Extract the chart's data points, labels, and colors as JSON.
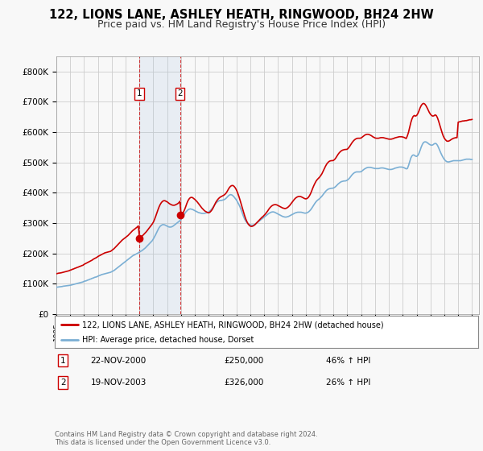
{
  "title": "122, LIONS LANE, ASHLEY HEATH, RINGWOOD, BH24 2HW",
  "subtitle": "Price paid vs. HM Land Registry's House Price Index (HPI)",
  "title_fontsize": 10.5,
  "subtitle_fontsize": 9,
  "background_color": "#f8f8f8",
  "plot_bg_color": "#f8f8f8",
  "grid_color": "#cccccc",
  "red_line_color": "#cc0000",
  "blue_line_color": "#7bafd4",
  "sale1_date_num": 2001.0,
  "sale1_price": 250000,
  "sale1_label": "1",
  "sale2_date_num": 2003.92,
  "sale2_price": 326000,
  "sale2_label": "2",
  "annotation1": "22-NOV-2000",
  "annotation1_price": "£250,000",
  "annotation1_pct": "46% ↑ HPI",
  "annotation2": "19-NOV-2003",
  "annotation2_price": "£326,000",
  "annotation2_pct": "26% ↑ HPI",
  "legend_line1": "122, LIONS LANE, ASHLEY HEATH, RINGWOOD, BH24 2HW (detached house)",
  "legend_line2": "HPI: Average price, detached house, Dorset",
  "footer": "Contains HM Land Registry data © Crown copyright and database right 2024.\nThis data is licensed under the Open Government Licence v3.0.",
  "ylim_min": 0,
  "ylim_max": 850000,
  "xmin": 1995.0,
  "xmax": 2025.5,
  "shade_x1": 2001.0,
  "shade_x2": 2003.92,
  "vline1_x": 2001.0,
  "vline2_x": 2003.92,
  "hpi_x": [
    1995.0,
    1995.083,
    1995.167,
    1995.25,
    1995.333,
    1995.417,
    1995.5,
    1995.583,
    1995.667,
    1995.75,
    1995.833,
    1995.917,
    1996.0,
    1996.083,
    1996.167,
    1996.25,
    1996.333,
    1996.417,
    1996.5,
    1996.583,
    1996.667,
    1996.75,
    1996.833,
    1996.917,
    1997.0,
    1997.083,
    1997.167,
    1997.25,
    1997.333,
    1997.417,
    1997.5,
    1997.583,
    1997.667,
    1997.75,
    1997.833,
    1997.917,
    1998.0,
    1998.083,
    1998.167,
    1998.25,
    1998.333,
    1998.417,
    1998.5,
    1998.583,
    1998.667,
    1998.75,
    1998.833,
    1998.917,
    1999.0,
    1999.083,
    1999.167,
    1999.25,
    1999.333,
    1999.417,
    1999.5,
    1999.583,
    1999.667,
    1999.75,
    1999.833,
    1999.917,
    2000.0,
    2000.083,
    2000.167,
    2000.25,
    2000.333,
    2000.417,
    2000.5,
    2000.583,
    2000.667,
    2000.75,
    2000.833,
    2000.917,
    2001.0,
    2001.083,
    2001.167,
    2001.25,
    2001.333,
    2001.417,
    2001.5,
    2001.583,
    2001.667,
    2001.75,
    2001.833,
    2001.917,
    2002.0,
    2002.083,
    2002.167,
    2002.25,
    2002.333,
    2002.417,
    2002.5,
    2002.583,
    2002.667,
    2002.75,
    2002.833,
    2002.917,
    2003.0,
    2003.083,
    2003.167,
    2003.25,
    2003.333,
    2003.417,
    2003.5,
    2003.583,
    2003.667,
    2003.75,
    2003.833,
    2003.917,
    2004.0,
    2004.083,
    2004.167,
    2004.25,
    2004.333,
    2004.417,
    2004.5,
    2004.583,
    2004.667,
    2004.75,
    2004.833,
    2004.917,
    2005.0,
    2005.083,
    2005.167,
    2005.25,
    2005.333,
    2005.417,
    2005.5,
    2005.583,
    2005.667,
    2005.75,
    2005.833,
    2005.917,
    2006.0,
    2006.083,
    2006.167,
    2006.25,
    2006.333,
    2006.417,
    2006.5,
    2006.583,
    2006.667,
    2006.75,
    2006.833,
    2006.917,
    2007.0,
    2007.083,
    2007.167,
    2007.25,
    2007.333,
    2007.417,
    2007.5,
    2007.583,
    2007.667,
    2007.75,
    2007.833,
    2007.917,
    2008.0,
    2008.083,
    2008.167,
    2008.25,
    2008.333,
    2008.417,
    2008.5,
    2008.583,
    2008.667,
    2008.75,
    2008.833,
    2008.917,
    2009.0,
    2009.083,
    2009.167,
    2009.25,
    2009.333,
    2009.417,
    2009.5,
    2009.583,
    2009.667,
    2009.75,
    2009.833,
    2009.917,
    2010.0,
    2010.083,
    2010.167,
    2010.25,
    2010.333,
    2010.417,
    2010.5,
    2010.583,
    2010.667,
    2010.75,
    2010.833,
    2010.917,
    2011.0,
    2011.083,
    2011.167,
    2011.25,
    2011.333,
    2011.417,
    2011.5,
    2011.583,
    2011.667,
    2011.75,
    2011.833,
    2011.917,
    2012.0,
    2012.083,
    2012.167,
    2012.25,
    2012.333,
    2012.417,
    2012.5,
    2012.583,
    2012.667,
    2012.75,
    2012.833,
    2012.917,
    2013.0,
    2013.083,
    2013.167,
    2013.25,
    2013.333,
    2013.417,
    2013.5,
    2013.583,
    2013.667,
    2013.75,
    2013.833,
    2013.917,
    2014.0,
    2014.083,
    2014.167,
    2014.25,
    2014.333,
    2014.417,
    2014.5,
    2014.583,
    2014.667,
    2014.75,
    2014.833,
    2014.917,
    2015.0,
    2015.083,
    2015.167,
    2015.25,
    2015.333,
    2015.417,
    2015.5,
    2015.583,
    2015.667,
    2015.75,
    2015.833,
    2015.917,
    2016.0,
    2016.083,
    2016.167,
    2016.25,
    2016.333,
    2016.417,
    2016.5,
    2016.583,
    2016.667,
    2016.75,
    2016.833,
    2016.917,
    2017.0,
    2017.083,
    2017.167,
    2017.25,
    2017.333,
    2017.417,
    2017.5,
    2017.583,
    2017.667,
    2017.75,
    2017.833,
    2017.917,
    2018.0,
    2018.083,
    2018.167,
    2018.25,
    2018.333,
    2018.417,
    2018.5,
    2018.583,
    2018.667,
    2018.75,
    2018.833,
    2018.917,
    2019.0,
    2019.083,
    2019.167,
    2019.25,
    2019.333,
    2019.417,
    2019.5,
    2019.583,
    2019.667,
    2019.75,
    2019.833,
    2019.917,
    2020.0,
    2020.083,
    2020.167,
    2020.25,
    2020.333,
    2020.417,
    2020.5,
    2020.583,
    2020.667,
    2020.75,
    2020.833,
    2020.917,
    2021.0,
    2021.083,
    2021.167,
    2021.25,
    2021.333,
    2021.417,
    2021.5,
    2021.583,
    2021.667,
    2021.75,
    2021.833,
    2021.917,
    2022.0,
    2022.083,
    2022.167,
    2022.25,
    2022.333,
    2022.417,
    2022.5,
    2022.583,
    2022.667,
    2022.75,
    2022.833,
    2022.917,
    2023.0,
    2023.083,
    2023.167,
    2023.25,
    2023.333,
    2023.417,
    2023.5,
    2023.583,
    2023.667,
    2023.75,
    2023.833,
    2023.917,
    2024.0,
    2024.083,
    2024.167,
    2024.25,
    2024.333,
    2024.417,
    2024.5,
    2024.583,
    2024.667,
    2024.75,
    2024.833,
    2024.917,
    2025.0
  ],
  "hpi_y": [
    88000,
    89000,
    89500,
    90000,
    90500,
    91000,
    92000,
    92500,
    93000,
    93500,
    94000,
    94500,
    95000,
    96000,
    97000,
    98000,
    99000,
    100000,
    101000,
    102000,
    103000,
    104000,
    105000,
    106000,
    108000,
    109000,
    110000,
    112000,
    113000,
    115000,
    116000,
    118000,
    119000,
    121000,
    122000,
    123000,
    125000,
    127000,
    128000,
    130000,
    131000,
    132000,
    133000,
    134000,
    135000,
    136000,
    137000,
    138000,
    140000,
    142000,
    144000,
    147000,
    150000,
    153000,
    156000,
    159000,
    162000,
    165000,
    168000,
    171000,
    174000,
    177000,
    180000,
    183000,
    186000,
    189000,
    192000,
    194000,
    196000,
    198000,
    200000,
    202000,
    205000,
    207000,
    209000,
    212000,
    215000,
    218000,
    222000,
    226000,
    230000,
    234000,
    238000,
    242000,
    248000,
    255000,
    262000,
    270000,
    278000,
    285000,
    290000,
    293000,
    295000,
    295000,
    294000,
    292000,
    290000,
    288000,
    287000,
    287000,
    288000,
    290000,
    293000,
    296000,
    299000,
    302000,
    305000,
    308000,
    312000,
    318000,
    324000,
    330000,
    336000,
    340000,
    344000,
    346000,
    347000,
    346000,
    345000,
    343000,
    341000,
    339000,
    337000,
    335000,
    334000,
    333000,
    332000,
    332000,
    332000,
    333000,
    334000,
    335000,
    337000,
    340000,
    344000,
    349000,
    354000,
    360000,
    365000,
    369000,
    372000,
    374000,
    375000,
    375000,
    376000,
    377000,
    379000,
    382000,
    386000,
    390000,
    393000,
    394000,
    393000,
    390000,
    386000,
    381000,
    376000,
    369000,
    362000,
    354000,
    344000,
    333000,
    323000,
    314000,
    307000,
    302000,
    298000,
    296000,
    294000,
    293000,
    293000,
    294000,
    296000,
    299000,
    302000,
    305000,
    308000,
    311000,
    314000,
    317000,
    320000,
    323000,
    326000,
    329000,
    332000,
    334000,
    336000,
    337000,
    337000,
    336000,
    334000,
    332000,
    330000,
    328000,
    326000,
    324000,
    322000,
    321000,
    320000,
    320000,
    321000,
    322000,
    324000,
    326000,
    328000,
    330000,
    332000,
    334000,
    335000,
    336000,
    336000,
    336000,
    336000,
    335000,
    334000,
    333000,
    333000,
    334000,
    336000,
    339000,
    343000,
    348000,
    354000,
    360000,
    366000,
    371000,
    375000,
    378000,
    381000,
    385000,
    389000,
    394000,
    399000,
    404000,
    408000,
    411000,
    413000,
    414000,
    415000,
    415000,
    416000,
    418000,
    421000,
    425000,
    429000,
    432000,
    435000,
    437000,
    438000,
    439000,
    439000,
    440000,
    442000,
    445000,
    449000,
    454000,
    459000,
    463000,
    466000,
    468000,
    469000,
    469000,
    469000,
    469000,
    470000,
    473000,
    476000,
    479000,
    481000,
    483000,
    484000,
    484000,
    484000,
    483000,
    482000,
    481000,
    480000,
    480000,
    480000,
    480000,
    481000,
    482000,
    482000,
    482000,
    481000,
    480000,
    479000,
    478000,
    477000,
    477000,
    477000,
    478000,
    479000,
    481000,
    482000,
    483000,
    484000,
    485000,
    485000,
    485000,
    484000,
    483000,
    481000,
    479000,
    480000,
    490000,
    503000,
    515000,
    522000,
    525000,
    524000,
    521000,
    520000,
    523000,
    530000,
    540000,
    551000,
    560000,
    566000,
    568000,
    568000,
    566000,
    563000,
    560000,
    558000,
    557000,
    558000,
    561000,
    563000,
    562000,
    557000,
    549000,
    540000,
    531000,
    523000,
    516000,
    510000,
    506000,
    503000,
    502000,
    502000,
    503000,
    504000,
    505000,
    506000,
    506000,
    506000,
    506000,
    506000,
    506000,
    506000,
    507000,
    508000,
    509000,
    510000,
    511000,
    511000,
    511000,
    511000,
    510000,
    510000
  ],
  "red_x": [
    1995.0,
    1995.083,
    1995.167,
    1995.25,
    1995.333,
    1995.417,
    1995.5,
    1995.583,
    1995.667,
    1995.75,
    1995.833,
    1995.917,
    1996.0,
    1996.083,
    1996.167,
    1996.25,
    1996.333,
    1996.417,
    1996.5,
    1996.583,
    1996.667,
    1996.75,
    1996.833,
    1996.917,
    1997.0,
    1997.083,
    1997.167,
    1997.25,
    1997.333,
    1997.417,
    1997.5,
    1997.583,
    1997.667,
    1997.75,
    1997.833,
    1997.917,
    1998.0,
    1998.083,
    1998.167,
    1998.25,
    1998.333,
    1998.417,
    1998.5,
    1998.583,
    1998.667,
    1998.75,
    1998.833,
    1998.917,
    1999.0,
    1999.083,
    1999.167,
    1999.25,
    1999.333,
    1999.417,
    1999.5,
    1999.583,
    1999.667,
    1999.75,
    1999.833,
    1999.917,
    2000.0,
    2000.083,
    2000.167,
    2000.25,
    2000.333,
    2000.417,
    2000.5,
    2000.583,
    2000.667,
    2000.75,
    2000.833,
    2000.917,
    2001.0,
    2001.083,
    2001.167,
    2001.25,
    2001.333,
    2001.417,
    2001.5,
    2001.583,
    2001.667,
    2001.75,
    2001.833,
    2001.917,
    2002.0,
    2002.083,
    2002.167,
    2002.25,
    2002.333,
    2002.417,
    2002.5,
    2002.583,
    2002.667,
    2002.75,
    2002.833,
    2002.917,
    2003.0,
    2003.083,
    2003.167,
    2003.25,
    2003.333,
    2003.417,
    2003.5,
    2003.583,
    2003.667,
    2003.75,
    2003.833,
    2003.917,
    2004.0,
    2004.083,
    2004.167,
    2004.25,
    2004.333,
    2004.417,
    2004.5,
    2004.583,
    2004.667,
    2004.75,
    2004.833,
    2004.917,
    2005.0,
    2005.083,
    2005.167,
    2005.25,
    2005.333,
    2005.417,
    2005.5,
    2005.583,
    2005.667,
    2005.75,
    2005.833,
    2005.917,
    2006.0,
    2006.083,
    2006.167,
    2006.25,
    2006.333,
    2006.417,
    2006.5,
    2006.583,
    2006.667,
    2006.75,
    2006.833,
    2006.917,
    2007.0,
    2007.083,
    2007.167,
    2007.25,
    2007.333,
    2007.417,
    2007.5,
    2007.583,
    2007.667,
    2007.75,
    2007.833,
    2007.917,
    2008.0,
    2008.083,
    2008.167,
    2008.25,
    2008.333,
    2008.417,
    2008.5,
    2008.583,
    2008.667,
    2008.75,
    2008.833,
    2008.917,
    2009.0,
    2009.083,
    2009.167,
    2009.25,
    2009.333,
    2009.417,
    2009.5,
    2009.583,
    2009.667,
    2009.75,
    2009.833,
    2009.917,
    2010.0,
    2010.083,
    2010.167,
    2010.25,
    2010.333,
    2010.417,
    2010.5,
    2010.583,
    2010.667,
    2010.75,
    2010.833,
    2010.917,
    2011.0,
    2011.083,
    2011.167,
    2011.25,
    2011.333,
    2011.417,
    2011.5,
    2011.583,
    2011.667,
    2011.75,
    2011.833,
    2011.917,
    2012.0,
    2012.083,
    2012.167,
    2012.25,
    2012.333,
    2012.417,
    2012.5,
    2012.583,
    2012.667,
    2012.75,
    2012.833,
    2012.917,
    2013.0,
    2013.083,
    2013.167,
    2013.25,
    2013.333,
    2013.417,
    2013.5,
    2013.583,
    2013.667,
    2013.75,
    2013.833,
    2013.917,
    2014.0,
    2014.083,
    2014.167,
    2014.25,
    2014.333,
    2014.417,
    2014.5,
    2014.583,
    2014.667,
    2014.75,
    2014.833,
    2014.917,
    2015.0,
    2015.083,
    2015.167,
    2015.25,
    2015.333,
    2015.417,
    2015.5,
    2015.583,
    2015.667,
    2015.75,
    2015.833,
    2015.917,
    2016.0,
    2016.083,
    2016.167,
    2016.25,
    2016.333,
    2016.417,
    2016.5,
    2016.583,
    2016.667,
    2016.75,
    2016.833,
    2016.917,
    2017.0,
    2017.083,
    2017.167,
    2017.25,
    2017.333,
    2017.417,
    2017.5,
    2017.583,
    2017.667,
    2017.75,
    2017.833,
    2017.917,
    2018.0,
    2018.083,
    2018.167,
    2018.25,
    2018.333,
    2018.417,
    2018.5,
    2018.583,
    2018.667,
    2018.75,
    2018.833,
    2018.917,
    2019.0,
    2019.083,
    2019.167,
    2019.25,
    2019.333,
    2019.417,
    2019.5,
    2019.583,
    2019.667,
    2019.75,
    2019.833,
    2019.917,
    2020.0,
    2020.083,
    2020.167,
    2020.25,
    2020.333,
    2020.417,
    2020.5,
    2020.583,
    2020.667,
    2020.75,
    2020.833,
    2020.917,
    2021.0,
    2021.083,
    2021.167,
    2021.25,
    2021.333,
    2021.417,
    2021.5,
    2021.583,
    2021.667,
    2021.75,
    2021.833,
    2021.917,
    2022.0,
    2022.083,
    2022.167,
    2022.25,
    2022.333,
    2022.417,
    2022.5,
    2022.583,
    2022.667,
    2022.75,
    2022.833,
    2022.917,
    2023.0,
    2023.083,
    2023.167,
    2023.25,
    2023.333,
    2023.417,
    2023.5,
    2023.583,
    2023.667,
    2023.75,
    2023.833,
    2023.917,
    2024.0,
    2024.083,
    2024.167,
    2024.25,
    2024.333,
    2024.417,
    2024.5,
    2024.583,
    2024.667,
    2024.75,
    2024.833,
    2024.917,
    2025.0
  ],
  "red_y": [
    133000,
    134000,
    135000,
    135500,
    136000,
    137000,
    138000,
    139000,
    140000,
    141000,
    142000,
    143000,
    145000,
    146000,
    148000,
    149000,
    151000,
    152000,
    154000,
    155000,
    157000,
    158000,
    160000,
    161000,
    164000,
    166000,
    168000,
    170000,
    172000,
    174000,
    176000,
    178000,
    181000,
    183000,
    185000,
    187000,
    190000,
    192000,
    194000,
    196000,
    198000,
    200000,
    202000,
    203000,
    204000,
    205000,
    206000,
    207000,
    210000,
    213000,
    216000,
    220000,
    224000,
    228000,
    232000,
    236000,
    240000,
    244000,
    247000,
    250000,
    253000,
    256000,
    259000,
    263000,
    267000,
    271000,
    275000,
    278000,
    281000,
    284000,
    287000,
    291000,
    250000,
    253000,
    256000,
    260000,
    264000,
    268000,
    272000,
    277000,
    282000,
    287000,
    292000,
    297000,
    303000,
    312000,
    322000,
    333000,
    344000,
    354000,
    362000,
    368000,
    372000,
    374000,
    374000,
    372000,
    370000,
    367000,
    364000,
    362000,
    360000,
    359000,
    359000,
    360000,
    362000,
    364000,
    367000,
    372000,
    326000,
    330000,
    336000,
    344000,
    354000,
    365000,
    374000,
    380000,
    384000,
    385000,
    384000,
    381000,
    378000,
    374000,
    370000,
    365000,
    360000,
    355000,
    350000,
    346000,
    342000,
    339000,
    337000,
    335000,
    334000,
    336000,
    340000,
    345000,
    352000,
    360000,
    368000,
    374000,
    379000,
    383000,
    386000,
    388000,
    390000,
    392000,
    395000,
    399000,
    405000,
    412000,
    418000,
    422000,
    424000,
    424000,
    421000,
    416000,
    409000,
    400000,
    389000,
    377000,
    364000,
    351000,
    338000,
    325000,
    314000,
    305000,
    298000,
    293000,
    290000,
    289000,
    290000,
    292000,
    295000,
    299000,
    303000,
    307000,
    311000,
    315000,
    319000,
    322000,
    326000,
    330000,
    335000,
    340000,
    346000,
    351000,
    355000,
    358000,
    360000,
    361000,
    361000,
    360000,
    358000,
    356000,
    354000,
    352000,
    350000,
    349000,
    348000,
    349000,
    351000,
    354000,
    358000,
    363000,
    368000,
    373000,
    378000,
    382000,
    385000,
    387000,
    388000,
    388000,
    387000,
    385000,
    383000,
    381000,
    380000,
    381000,
    384000,
    389000,
    396000,
    405000,
    415000,
    424000,
    432000,
    439000,
    444000,
    448000,
    452000,
    457000,
    463000,
    471000,
    479000,
    487000,
    494000,
    499000,
    503000,
    505000,
    506000,
    506000,
    507000,
    510000,
    515000,
    521000,
    527000,
    532000,
    536000,
    539000,
    541000,
    542000,
    543000,
    543000,
    544000,
    548000,
    553000,
    559000,
    565000,
    570000,
    574000,
    577000,
    579000,
    580000,
    580000,
    580000,
    581000,
    584000,
    587000,
    590000,
    592000,
    593000,
    593000,
    592000,
    590000,
    588000,
    585000,
    583000,
    581000,
    580000,
    580000,
    580000,
    581000,
    582000,
    582000,
    582000,
    581000,
    580000,
    579000,
    578000,
    577000,
    577000,
    577000,
    578000,
    579000,
    581000,
    582000,
    583000,
    584000,
    585000,
    585000,
    585000,
    584000,
    583000,
    581000,
    579000,
    588000,
    600000,
    616000,
    632000,
    644000,
    652000,
    655000,
    653000,
    655000,
    661000,
    670000,
    680000,
    688000,
    693000,
    695000,
    693000,
    688000,
    681000,
    673000,
    665000,
    659000,
    655000,
    653000,
    654000,
    657000,
    655000,
    648000,
    637000,
    624000,
    611000,
    599000,
    588000,
    580000,
    575000,
    571000,
    570000,
    571000,
    573000,
    576000,
    578000,
    580000,
    581000,
    582000,
    582000,
    633000,
    634000,
    635000,
    636000,
    637000,
    637000,
    638000,
    638000,
    639000,
    640000,
    641000,
    641000,
    642000
  ]
}
